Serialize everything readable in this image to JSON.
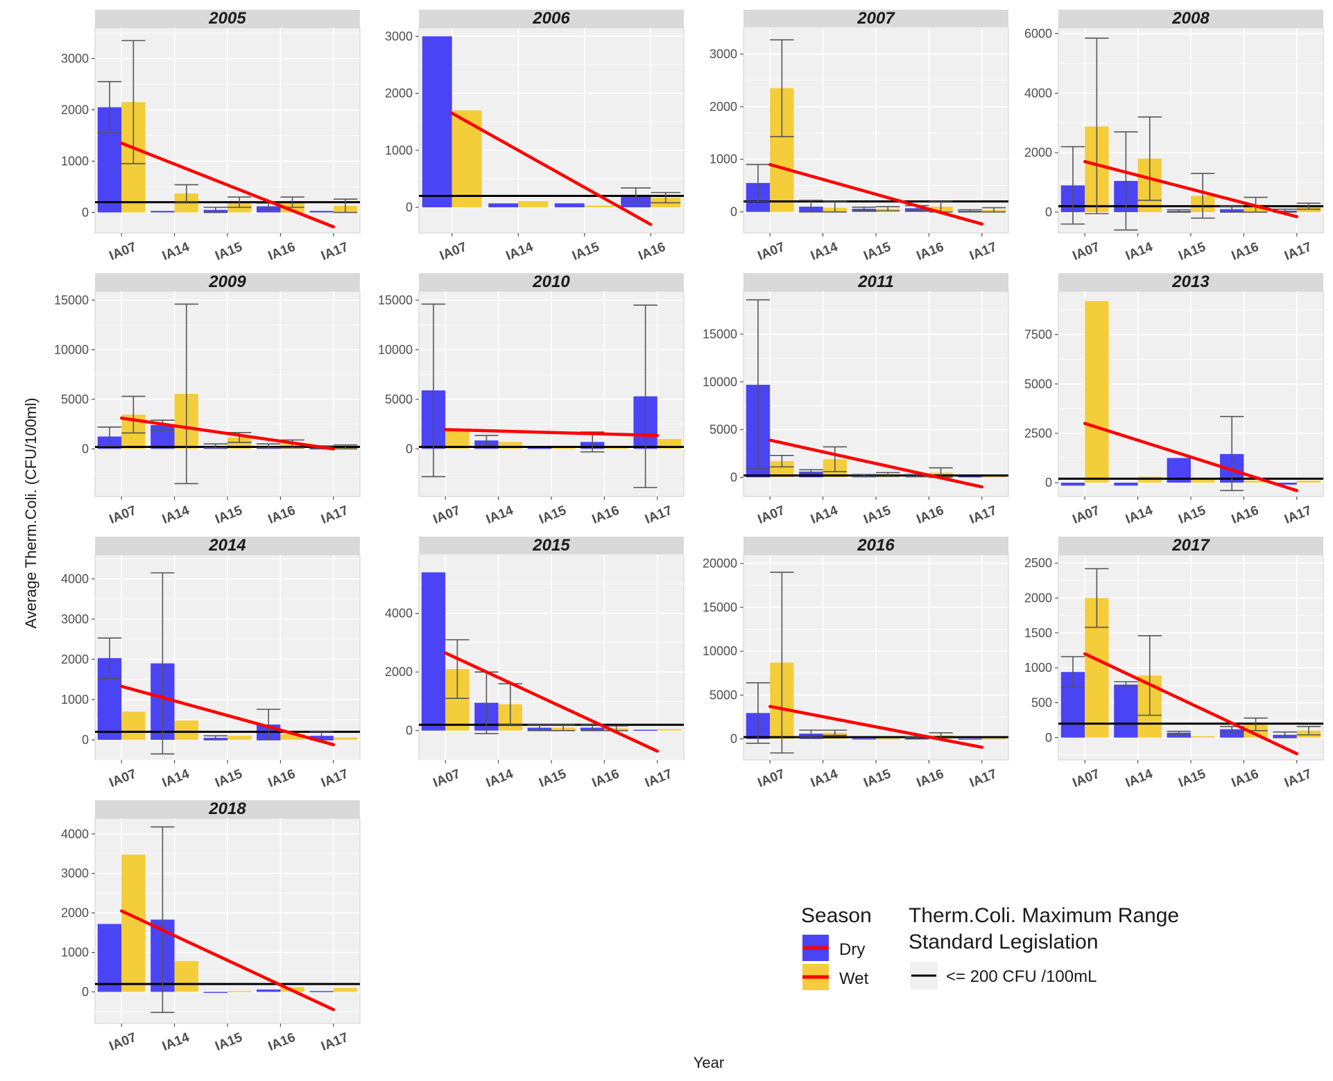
{
  "chart_data": {
    "type": "bar",
    "facet_by": "year",
    "xlabel": "Year",
    "ylabel": "Average Therm.Coli. (CFU/100ml)",
    "colors": {
      "Dry": "#4b44f4",
      "Wet": "#f4cd3a",
      "trend": "#ff0000",
      "standard": "#000000",
      "errorbar": "#555555",
      "panel": "#f0f0f0",
      "strip": "#d9d9d9",
      "grid": "#ffffff"
    },
    "legend": {
      "season_title": "Season",
      "season_entries": [
        "Dry",
        "Wet"
      ],
      "standard_title_line1": "Therm.Coli. Maximum Range",
      "standard_title_line2": "Standard Legislation",
      "standard_entry": "<= 200 CFU /100mL"
    },
    "standard_value": 200,
    "panels": [
      {
        "year": "2005",
        "categories": [
          "IA07",
          "IA14",
          "IA15",
          "IA16",
          "IA17"
        ],
        "ylim": [
          -400,
          3600
        ],
        "yticks": [
          0,
          1000,
          2000,
          3000
        ],
        "series": [
          {
            "name": "Dry",
            "values": [
              2050,
              30,
              50,
              120,
              30
            ],
            "err_lo": [
              1550,
              null,
              0,
              60,
              null
            ],
            "err_hi": [
              2550,
              null,
              100,
              180,
              null
            ]
          },
          {
            "name": "Wet",
            "values": [
              2150,
              370,
              200,
              200,
              130
            ],
            "err_lo": [
              950,
              200,
              100,
              100,
              0
            ],
            "err_hi": [
              3350,
              540,
              300,
              300,
              260
            ]
          }
        ],
        "trend": [
          1350,
          -280
        ]
      },
      {
        "year": "2006",
        "categories": [
          "IA07",
          "IA14",
          "IA15",
          "IA16"
        ],
        "ylim": [
          -450,
          3150
        ],
        "yticks": [
          0,
          1000,
          2000,
          3000
        ],
        "series": [
          {
            "name": "Dry",
            "values": [
              3000,
              70,
              70,
              220
            ],
            "err_lo": [
              null,
              null,
              null,
              100
            ],
            "err_hi": [
              null,
              null,
              null,
              340
            ]
          },
          {
            "name": "Wet",
            "values": [
              1700,
              110,
              30,
              170
            ],
            "err_lo": [
              null,
              null,
              null,
              80
            ],
            "err_hi": [
              null,
              null,
              null,
              260
            ]
          }
        ],
        "trend": [
          1650,
          -300
        ]
      },
      {
        "year": "2007",
        "categories": [
          "IA07",
          "IA14",
          "IA15",
          "IA16",
          "IA17"
        ],
        "ylim": [
          -400,
          3500
        ],
        "yticks": [
          0,
          1000,
          2000,
          3000
        ],
        "series": [
          {
            "name": "Dry",
            "values": [
              550,
              100,
              60,
              70,
              20
            ],
            "err_lo": [
              200,
              0,
              30,
              20,
              0
            ],
            "err_hi": [
              900,
              220,
              90,
              120,
              40
            ]
          },
          {
            "name": "Wet",
            "values": [
              2350,
              80,
              60,
              100,
              40
            ],
            "err_lo": [
              1430,
              0,
              20,
              0,
              0
            ],
            "err_hi": [
              3270,
              200,
              100,
              200,
              80
            ]
          }
        ],
        "trend": [
          900,
          -230
        ]
      },
      {
        "year": "2008",
        "categories": [
          "IA07",
          "IA14",
          "IA15",
          "IA16",
          "IA17"
        ],
        "ylim": [
          -700,
          6200
        ],
        "yticks": [
          0,
          2000,
          4000,
          6000
        ],
        "series": [
          {
            "name": "Dry",
            "values": [
              900,
              1050,
              40,
              100,
              50
            ],
            "err_lo": [
              -400,
              -600,
              0,
              0,
              0
            ],
            "err_hi": [
              2200,
              2700,
              80,
              200,
              100
            ]
          },
          {
            "name": "Wet",
            "values": [
              2880,
              1800,
              550,
              250,
              200
            ],
            "err_lo": [
              -50,
              400,
              -200,
              0,
              100
            ],
            "err_hi": [
              5850,
              3200,
              1300,
              500,
              300
            ]
          }
        ],
        "trend": [
          1700,
          -150
        ]
      },
      {
        "year": "2009",
        "categories": [
          "IA07",
          "IA14",
          "IA15",
          "IA16",
          "IA17"
        ],
        "ylim": [
          -4800,
          15900
        ],
        "yticks": [
          0,
          5000,
          10000,
          15000
        ],
        "series": [
          {
            "name": "Dry",
            "values": [
              1250,
              2400,
              300,
              300,
              150
            ],
            "err_lo": [
              300,
              1900,
              100,
              100,
              0
            ],
            "err_hi": [
              2200,
              2900,
              500,
              500,
              300
            ]
          },
          {
            "name": "Wet",
            "values": [
              3450,
              5550,
              1150,
              500,
              200
            ],
            "err_lo": [
              1600,
              -3500,
              650,
              100,
              0
            ],
            "err_hi": [
              5300,
              14600,
              1650,
              900,
              400
            ]
          }
        ],
        "trend": [
          3100,
          0
        ]
      },
      {
        "year": "2010",
        "categories": [
          "IA07",
          "IA14",
          "IA15",
          "IA16",
          "IA17"
        ],
        "ylim": [
          -4800,
          15900
        ],
        "yticks": [
          0,
          5000,
          10000,
          15000
        ],
        "series": [
          {
            "name": "Dry",
            "values": [
              5900,
              850,
              100,
              700,
              5300
            ],
            "err_lo": [
              -2800,
              350,
              null,
              -300,
              -3900
            ],
            "err_hi": [
              14600,
              1350,
              null,
              1700,
              14500
            ]
          },
          {
            "name": "Wet",
            "values": [
              1800,
              700,
              100,
              200,
              1000
            ],
            "err_lo": [
              null,
              null,
              null,
              null,
              null
            ],
            "err_hi": [
              null,
              null,
              null,
              null,
              null
            ]
          }
        ],
        "trend": [
          1950,
          1350
        ]
      },
      {
        "year": "2011",
        "categories": [
          "IA07",
          "IA14",
          "IA15",
          "IA16",
          "IA17"
        ],
        "ylim": [
          -2000,
          19500
        ],
        "yticks": [
          0,
          5000,
          10000,
          15000
        ],
        "series": [
          {
            "name": "Dry",
            "values": [
              9700,
              600,
              200,
              200,
              100
            ],
            "err_lo": [
              900,
              400,
              100,
              100,
              null
            ],
            "err_hi": [
              18600,
              800,
              300,
              300,
              null
            ]
          },
          {
            "name": "Wet",
            "values": [
              1700,
              1900,
              300,
              500,
              100
            ],
            "err_lo": [
              1100,
              600,
              100,
              0,
              null
            ],
            "err_hi": [
              2300,
              3200,
              500,
              1000,
              null
            ]
          }
        ],
        "trend": [
          3900,
          -1000
        ]
      },
      {
        "year": "2013",
        "categories": [
          "IA07",
          "IA14",
          "IA15",
          "IA16",
          "IA17"
        ],
        "ylim": [
          -700,
          9700
        ],
        "yticks": [
          0,
          2500,
          5000,
          7500
        ],
        "series": [
          {
            "name": "Dry",
            "values": [
              -150,
              -150,
              1250,
              1450,
              -100
            ],
            "err_lo": [
              null,
              null,
              null,
              -400,
              null
            ],
            "err_hi": [
              null,
              null,
              null,
              3350,
              null
            ]
          },
          {
            "name": "Wet",
            "values": [
              9200,
              300,
              150,
              100,
              100
            ],
            "err_lo": [
              null,
              null,
              null,
              null,
              null
            ],
            "err_hi": [
              null,
              null,
              null,
              null,
              null
            ]
          }
        ],
        "trend": [
          3000,
          -400
        ]
      },
      {
        "year": "2014",
        "categories": [
          "IA07",
          "IA14",
          "IA15",
          "IA16",
          "IA17"
        ],
        "ylim": [
          -500,
          4600
        ],
        "yticks": [
          0,
          1000,
          2000,
          3000,
          4000
        ],
        "series": [
          {
            "name": "Dry",
            "values": [
              2030,
              1900,
              50,
              380,
              100
            ],
            "err_lo": [
              1530,
              -350,
              0,
              0,
              0
            ],
            "err_hi": [
              2530,
              4150,
              100,
              760,
              200
            ]
          },
          {
            "name": "Wet",
            "values": [
              700,
              480,
              100,
              150,
              60
            ],
            "err_lo": [
              null,
              null,
              null,
              null,
              null
            ],
            "err_hi": [
              null,
              null,
              null,
              null,
              null
            ]
          }
        ],
        "trend": [
          1330,
          -120
        ]
      },
      {
        "year": "2015",
        "categories": [
          "IA07",
          "IA14",
          "IA15",
          "IA16",
          "IA17"
        ],
        "ylim": [
          -1000,
          6000
        ],
        "yticks": [
          0,
          2000,
          4000
        ],
        "series": [
          {
            "name": "Dry",
            "values": [
              5400,
              950,
              100,
              100,
              30
            ],
            "err_lo": [
              null,
              -100,
              0,
              0,
              null
            ],
            "err_hi": [
              null,
              2000,
              200,
              200,
              null
            ]
          },
          {
            "name": "Wet",
            "values": [
              2100,
              900,
              100,
              80,
              50
            ],
            "err_lo": [
              1100,
              200,
              0,
              0,
              null
            ],
            "err_hi": [
              3100,
              1600,
              200,
              160,
              null
            ]
          }
        ],
        "trend": [
          2650,
          -700
        ]
      },
      {
        "year": "2016",
        "categories": [
          "IA07",
          "IA14",
          "IA15",
          "IA16",
          "IA17"
        ],
        "ylim": [
          -2400,
          21000
        ],
        "yticks": [
          0,
          5000,
          10000,
          15000,
          20000
        ],
        "series": [
          {
            "name": "Dry",
            "values": [
              2950,
              600,
              50,
              100,
              30
            ],
            "err_lo": [
              -500,
              200,
              null,
              0,
              null
            ],
            "err_hi": [
              6400,
              1000,
              null,
              200,
              null
            ]
          },
          {
            "name": "Wet",
            "values": [
              8700,
              700,
              50,
              400,
              50
            ],
            "err_lo": [
              -1600,
              400,
              null,
              100,
              null
            ],
            "err_hi": [
              19000,
              1000,
              null,
              700,
              null
            ]
          }
        ],
        "trend": [
          3700,
          -950
        ]
      },
      {
        "year": "2017",
        "categories": [
          "IA07",
          "IA14",
          "IA15",
          "IA16",
          "IA17"
        ],
        "ylim": [
          -320,
          2620
        ],
        "yticks": [
          0,
          500,
          1000,
          1500,
          2000,
          2500
        ],
        "series": [
          {
            "name": "Dry",
            "values": [
              940,
              760,
              70,
              120,
              40
            ],
            "err_lo": [
              720,
              720,
              50,
              80,
              0
            ],
            "err_hi": [
              1160,
              800,
              90,
              160,
              80
            ]
          },
          {
            "name": "Wet",
            "values": [
              2000,
              890,
              20,
              190,
              100
            ],
            "err_lo": [
              1580,
              320,
              null,
              100,
              40
            ],
            "err_hi": [
              2420,
              1460,
              null,
              280,
              160
            ]
          }
        ],
        "trend": [
          1200,
          -230
        ]
      },
      {
        "year": "2018",
        "categories": [
          "IA07",
          "IA14",
          "IA15",
          "IA16",
          "IA17"
        ],
        "ylim": [
          -800,
          4400
        ],
        "yticks": [
          0,
          1000,
          2000,
          3000,
          4000
        ],
        "series": [
          {
            "name": "Dry",
            "values": [
              1720,
              1830,
              -20,
              60,
              20
            ],
            "err_lo": [
              null,
              -520,
              null,
              null,
              null
            ],
            "err_hi": [
              null,
              4180,
              null,
              null,
              null
            ]
          },
          {
            "name": "Wet",
            "values": [
              3480,
              780,
              20,
              120,
              100
            ],
            "err_lo": [
              null,
              null,
              null,
              null,
              null
            ],
            "err_hi": [
              null,
              null,
              null,
              null,
              null
            ]
          }
        ],
        "trend": [
          2050,
          -450
        ]
      }
    ]
  }
}
